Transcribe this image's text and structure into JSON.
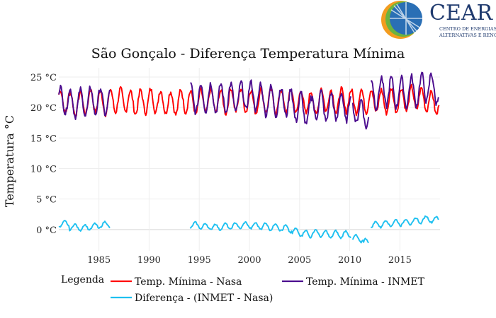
{
  "logo": {
    "name": "CEAR",
    "tagline_line1": "CENTRO DE ENERGIAS",
    "tagline_line2": "ALTERNATIVAS E RENOVÁVEIS",
    "colors": {
      "text": "#1f3a6e",
      "globe_blue": "#2a6fb5",
      "globe_green": "#6cb33f",
      "globe_orange": "#f39c1f"
    }
  },
  "chart_data": {
    "type": "line",
    "title": "São Gonçalo - Diferença Temperatura Mínima",
    "xlabel": "",
    "ylabel": "Temperatura °C",
    "xlim": [
      1981.0,
      2019.0
    ],
    "ylim": [
      -3.5,
      26.5
    ],
    "x_ticks": [
      1985,
      1990,
      1995,
      2000,
      2005,
      2010,
      2015
    ],
    "x_tick_labels": [
      "1985",
      "1990",
      "1995",
      "2000",
      "2005",
      "2010",
      "2015"
    ],
    "y_ticks": [
      0,
      5,
      10,
      15,
      20,
      25
    ],
    "y_tick_labels": [
      "0 °C",
      "5 °C",
      "10 °C",
      "15 °C",
      "20 °C",
      "25 °C"
    ],
    "grid": true,
    "legend": {
      "title": "Legenda",
      "placement": "bottom",
      "entries": [
        "Temp. Mínima - Nasa",
        "Temp. Mínima - INMET",
        "Diferença - (INMET - Nasa)"
      ]
    },
    "series": [
      {
        "name": "Temp. Mínima - Nasa",
        "color": "#ff0000",
        "segments": [
          {
            "start": 1981.0,
            "step": 0.0833,
            "count": 456,
            "base": 21.0,
            "amp": 1.9,
            "phase": 0.15,
            "yearly_offsets": [
              0.0,
              -0.4,
              -0.2,
              0.1,
              -0.2,
              0.1,
              0.2,
              -0.2,
              0.0,
              0.1,
              -0.1,
              -0.3,
              0.1,
              -0.2,
              0.0,
              0.1,
              -0.1,
              0.3,
              0.2,
              0.0,
              0.1,
              0.0,
              0.1,
              0.0,
              -0.1,
              -0.3,
              0.3,
              0.0,
              0.2,
              0.0,
              0.1,
              0.1,
              0.0,
              0.2,
              0.3,
              0.5,
              0.3,
              -0.3
            ]
          }
        ]
      },
      {
        "name": "Temp. Mínima - INMET",
        "color": "#4b0c8e",
        "segments": [
          {
            "start": 1981.0,
            "step": 0.0833,
            "count": 62,
            "base": 21.1,
            "amp": 2.2,
            "phase": 0.15,
            "yearly_offsets": [
              0.1,
              -0.4,
              -0.3,
              0.0,
              -0.1,
              0.0
            ]
          },
          {
            "start": 1994.1,
            "step": 0.0833,
            "count": 86,
            "base": 21.3,
            "amp": 2.3,
            "phase": 0.15,
            "yearly_offsets": [
              0.2,
              0.4,
              0.2,
              0.3,
              0.3,
              0.6,
              0.5,
              0.3
            ]
          },
          {
            "start": 2001.2,
            "step": 0.0833,
            "count": 108,
            "base": 20.9,
            "amp": 2.3,
            "phase": 0.15,
            "yearly_offsets": [
              0.2,
              0.1,
              0.0,
              -0.8,
              -1.5,
              -0.5,
              -0.9,
              -0.8,
              -0.8,
              -0.3
            ]
          },
          {
            "start": 2010.3,
            "step": 0.0833,
            "count": 20,
            "base": 20.0,
            "amp": 1.9,
            "phase": 0.15,
            "yearly_offsets": [
              -0.6,
              -1.4
            ]
          },
          {
            "start": 2012.1,
            "step": 0.0833,
            "count": 82,
            "base": 21.8,
            "amp": 2.4,
            "phase": 0.15,
            "yearly_offsets": [
              0.5,
              0.8,
              0.6,
              0.7,
              0.9,
              1.6,
              1.2,
              1.0
            ]
          }
        ]
      },
      {
        "name": "Diferença - (INMET - Nasa)",
        "color": "#1ec0f0",
        "segments": [
          {
            "start": 1981.0,
            "step": 0.0833,
            "count": 62,
            "base": 0.6,
            "amp": 0.5,
            "phase": 0.6,
            "yearly_offsets": [
              0.3,
              -0.2,
              -0.3,
              -0.1,
              0.2,
              0.1
            ]
          },
          {
            "start": 1994.1,
            "step": 0.0833,
            "count": 86,
            "base": 0.4,
            "amp": 0.5,
            "phase": 0.6,
            "yearly_offsets": [
              0.3,
              0.1,
              0.0,
              0.1,
              0.2,
              0.3,
              0.2,
              0.3
            ]
          },
          {
            "start": 2001.2,
            "step": 0.0833,
            "count": 108,
            "base": 0.1,
            "amp": 0.6,
            "phase": 0.6,
            "yearly_offsets": [
              0.4,
              0.3,
              0.0,
              -0.5,
              -0.8,
              -0.7,
              -0.9,
              -0.9,
              -0.9,
              -0.6
            ]
          },
          {
            "start": 2010.3,
            "step": 0.0833,
            "count": 20,
            "base": -1.5,
            "amp": 0.6,
            "phase": 0.6,
            "yearly_offsets": [
              0.0,
              -0.6
            ]
          },
          {
            "start": 2012.1,
            "step": 0.0833,
            "count": 82,
            "base": 0.8,
            "amp": 0.5,
            "phase": 0.6,
            "yearly_offsets": [
              0.0,
              0.2,
              0.3,
              0.4,
              0.6,
              0.9,
              0.8,
              0.6
            ]
          }
        ]
      }
    ]
  }
}
